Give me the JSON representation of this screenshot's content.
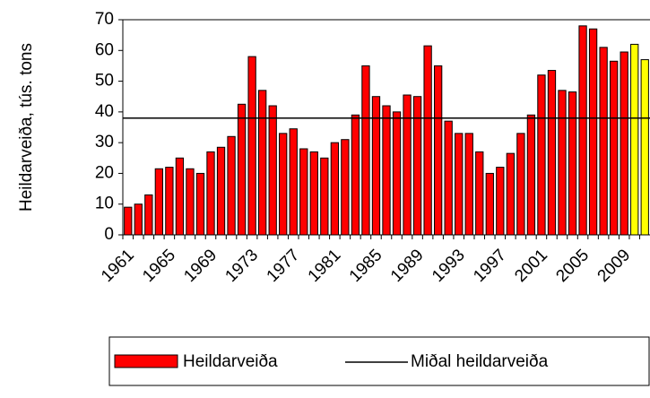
{
  "chart_data": {
    "type": "bar",
    "y_label": "Heildarveiða, tús. tons",
    "categories": [
      "1961",
      null,
      null,
      null,
      "1965",
      null,
      null,
      null,
      "1969",
      null,
      null,
      null,
      "1973",
      null,
      null,
      null,
      "1977",
      null,
      null,
      null,
      "1981",
      null,
      null,
      null,
      "1985",
      null,
      null,
      null,
      "1989",
      null,
      null,
      null,
      "1993",
      null,
      null,
      null,
      "1997",
      null,
      null,
      null,
      "2001",
      null,
      null,
      null,
      "2005",
      null,
      null,
      null,
      "2009",
      null,
      null
    ],
    "series": [
      {
        "name": "Heildarveiða",
        "color": "#ff0000",
        "values": [
          9,
          10,
          13,
          21.5,
          22,
          25,
          21.5,
          20,
          27,
          28.5,
          32,
          42.5,
          58,
          47,
          42,
          33,
          34.5,
          28,
          27,
          25,
          30,
          31,
          39,
          55,
          45,
          42,
          40,
          45.5,
          45,
          61.5,
          55,
          37,
          33,
          33,
          27,
          20,
          22,
          26.5,
          33,
          39,
          52,
          53.5,
          47,
          46.5,
          68,
          67,
          61,
          56.5,
          59.5,
          62,
          57
        ],
        "colors": [
          "#ff0000",
          "#ff0000",
          "#ff0000",
          "#ff0000",
          "#ff0000",
          "#ff0000",
          "#ff0000",
          "#ff0000",
          "#ff0000",
          "#ff0000",
          "#ff0000",
          "#ff0000",
          "#ff0000",
          "#ff0000",
          "#ff0000",
          "#ff0000",
          "#ff0000",
          "#ff0000",
          "#ff0000",
          "#ff0000",
          "#ff0000",
          "#ff0000",
          "#ff0000",
          "#ff0000",
          "#ff0000",
          "#ff0000",
          "#ff0000",
          "#ff0000",
          "#ff0000",
          "#ff0000",
          "#ff0000",
          "#ff0000",
          "#ff0000",
          "#ff0000",
          "#ff0000",
          "#ff0000",
          "#ff0000",
          "#ff0000",
          "#ff0000",
          "#ff0000",
          "#ff0000",
          "#ff0000",
          "#ff0000",
          "#ff0000",
          "#ff0000",
          "#ff0000",
          "#ff0000",
          "#ff0000",
          "#ff0000",
          "#ffff00",
          "#ffff00"
        ]
      }
    ],
    "reference_line": {
      "name": "Miðal heildarveiða",
      "value": 38,
      "color": "#000000"
    },
    "ylim": [
      0,
      70
    ],
    "yticks": [
      0,
      10,
      20,
      30,
      40,
      50,
      60,
      70
    ]
  }
}
